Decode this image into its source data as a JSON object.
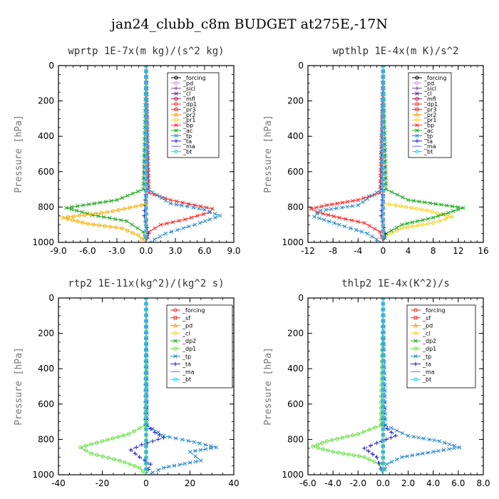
{
  "figure_title": "jan24_clubb_c8m  BUDGET at275E,-17N",
  "chart_data": [
    {
      "type": "line",
      "title": "wprtp  1E-7x(m kg)/(s^2 kg)",
      "ylabel": "Pressure [hPa]",
      "xlabel": "",
      "xlim": [
        -9,
        9
      ],
      "ylim": [
        1000,
        0
      ],
      "xticks": [
        "-9.0",
        "-6.0",
        "-3.0",
        "0.0",
        "3.0",
        "6.0",
        "9.0"
      ],
      "xtick_values": [
        -9,
        -6,
        -3,
        0,
        3,
        6,
        9
      ],
      "yticks": [
        "0",
        "200",
        "400",
        "600",
        "800",
        "1000"
      ],
      "ytick_values": [
        0,
        200,
        400,
        600,
        800,
        1000
      ],
      "series": [
        {
          "name": "_forcing",
          "color": "#000000",
          "marker": "o",
          "x": [
            0,
            0
          ],
          "y": [
            0,
            1000
          ]
        },
        {
          "name": "_pd",
          "color": "#c8a0e6",
          "marker": "o",
          "x": [
            0,
            0
          ],
          "y": [
            0,
            1000
          ]
        },
        {
          "name": "_sicl",
          "color": "#7b3fa0",
          "marker": "+",
          "x": [
            0,
            0
          ],
          "y": [
            0,
            1000
          ]
        },
        {
          "name": "_cl",
          "color": "#5a2a8a",
          "marker": "x",
          "x": [
            0,
            0
          ],
          "y": [
            0,
            1000
          ]
        },
        {
          "name": "_mfl",
          "color": "#a01a4a",
          "marker": "o",
          "x": [
            0,
            0
          ],
          "y": [
            0,
            1000
          ]
        },
        {
          "name": "_dp1",
          "color": "#e03030",
          "marker": "o",
          "x": [
            0,
            0
          ],
          "y": [
            0,
            1000
          ]
        },
        {
          "name": "_pr3",
          "color": "#e03030",
          "marker": "s",
          "x": [
            0,
            0
          ],
          "y": [
            0,
            1000
          ]
        },
        {
          "name": "_pr2",
          "color": "#f5a020",
          "marker": "^",
          "x": [
            0,
            0
          ],
          "y": [
            0,
            1000
          ]
        },
        {
          "name": "_pr1",
          "color": "#f5d020",
          "marker": "o",
          "x": [
            0,
            0
          ],
          "y": [
            0,
            1000
          ]
        },
        {
          "name": "_bp",
          "color": "#ff2a2a",
          "marker": "x",
          "x": [
            0,
            0.3,
            2.5,
            5.0,
            6.8,
            6.5,
            4.0,
            1.5,
            0.3,
            0
          ],
          "y": [
            0,
            720,
            760,
            790,
            810,
            830,
            870,
            900,
            940,
            1000
          ]
        },
        {
          "name": "_ac",
          "color": "#22aa22",
          "marker": "x",
          "x": [
            0,
            -0.3,
            -3.0,
            -8.2,
            -5.5,
            -2.0,
            -0.3,
            0
          ],
          "y": [
            0,
            700,
            760,
            805,
            845,
            880,
            940,
            1000
          ]
        },
        {
          "name": "_tp",
          "color": "#2a8ac8",
          "marker": "x",
          "x": [
            0,
            0.2,
            2.5,
            6.0,
            7.6,
            5.0,
            2.0,
            0.3
          ],
          "y": [
            0,
            700,
            780,
            815,
            850,
            900,
            950,
            1000
          ]
        },
        {
          "name": "_ta",
          "color": "#2222cc",
          "marker": "+",
          "x": [
            0,
            0,
            -0.2,
            0.2,
            0
          ],
          "y": [
            0,
            700,
            850,
            950,
            1000
          ]
        },
        {
          "name": "_ma",
          "color": "#8080ff",
          "marker": "-",
          "x": [
            0,
            0
          ],
          "y": [
            0,
            1000
          ]
        },
        {
          "name": "_bt",
          "color": "#22d0ff",
          "marker": "o",
          "x": [
            0,
            0
          ],
          "y": [
            0,
            1000
          ]
        },
        {
          "name": "_pr",
          "color": "#f5b000",
          "marker": "o",
          "x": [
            0,
            -0.5,
            -4.0,
            -8.6,
            -6.0,
            -2.5,
            -0.8,
            0
          ],
          "y": [
            780,
            790,
            830,
            860,
            895,
            920,
            960,
            1000
          ]
        }
      ]
    },
    {
      "type": "line",
      "title": "wpthlp  1E-4x(m K)/s^2",
      "ylabel": "Pressure [hPa]",
      "xlabel": "",
      "xlim": [
        -12,
        16
      ],
      "ylim": [
        1000,
        0
      ],
      "xticks": [
        "-12",
        "-8",
        "-4",
        "0",
        "4",
        "8",
        "12",
        "16"
      ],
      "xtick_values": [
        -12,
        -8,
        -4,
        0,
        4,
        8,
        12,
        16
      ],
      "yticks": [
        "0",
        "200",
        "400",
        "600",
        "800",
        "1000"
      ],
      "ytick_values": [
        0,
        200,
        400,
        600,
        800,
        1000
      ],
      "series": [
        {
          "name": "_forcing",
          "color": "#000000",
          "marker": "o",
          "x": [
            0,
            0
          ],
          "y": [
            0,
            1000
          ]
        },
        {
          "name": "_pd",
          "color": "#c8a0e6",
          "marker": "o",
          "x": [
            0,
            0
          ],
          "y": [
            0,
            1000
          ]
        },
        {
          "name": "_sicl",
          "color": "#7b3fa0",
          "marker": "+",
          "x": [
            0,
            0
          ],
          "y": [
            0,
            1000
          ]
        },
        {
          "name": "_cl",
          "color": "#5a2a8a",
          "marker": "x",
          "x": [
            0,
            0
          ],
          "y": [
            0,
            1000
          ]
        },
        {
          "name": "_mfl",
          "color": "#a01a4a",
          "marker": "o",
          "x": [
            0,
            0
          ],
          "y": [
            0,
            1000
          ]
        },
        {
          "name": "_dp1",
          "color": "#e03030",
          "marker": "o",
          "x": [
            0,
            0
          ],
          "y": [
            0,
            1000
          ]
        },
        {
          "name": "_pr3",
          "color": "#e03030",
          "marker": "s",
          "x": [
            0,
            0
          ],
          "y": [
            0,
            1000
          ]
        },
        {
          "name": "_pr2",
          "color": "#f5a020",
          "marker": "^",
          "x": [
            0,
            0
          ],
          "y": [
            0,
            1000
          ]
        },
        {
          "name": "_pr1",
          "color": "#f5d020",
          "marker": "o",
          "x": [
            0,
            2.0,
            7.0,
            11.0,
            8.0,
            3.0,
            0.5,
            0
          ],
          "y": [
            780,
            790,
            820,
            855,
            890,
            920,
            960,
            1000
          ]
        },
        {
          "name": "_bp",
          "color": "#ff2a2a",
          "marker": "x",
          "x": [
            0,
            -0.5,
            -4.0,
            -9.0,
            -11.5,
            -10.5,
            -7.0,
            -3.0,
            -0.5,
            0
          ],
          "y": [
            0,
            720,
            760,
            790,
            810,
            830,
            860,
            890,
            940,
            1000
          ]
        },
        {
          "name": "_ac",
          "color": "#22aa22",
          "marker": "x",
          "x": [
            0,
            0.5,
            4.0,
            12.8,
            8.0,
            3.0,
            0.5,
            0
          ],
          "y": [
            0,
            700,
            760,
            805,
            860,
            900,
            950,
            1000
          ]
        },
        {
          "name": "_tp",
          "color": "#2a8ac8",
          "marker": "x",
          "x": [
            0,
            -0.3,
            -4.0,
            -10.0,
            -11.0,
            -7.0,
            -2.5,
            -0.3
          ],
          "y": [
            0,
            700,
            790,
            820,
            855,
            900,
            950,
            1000
          ]
        },
        {
          "name": "_ta",
          "color": "#2222cc",
          "marker": "+",
          "x": [
            0,
            0,
            -0.3,
            0.3,
            0
          ],
          "y": [
            0,
            700,
            850,
            950,
            1000
          ]
        },
        {
          "name": "_ma",
          "color": "#8080ff",
          "marker": "-",
          "x": [
            0,
            0
          ],
          "y": [
            0,
            1000
          ]
        },
        {
          "name": "_bt",
          "color": "#22d0ff",
          "marker": "o",
          "x": [
            0,
            0
          ],
          "y": [
            0,
            1000
          ]
        }
      ]
    },
    {
      "type": "line",
      "title": "rtp2  1E-11x(kg^2)/(kg^2 s)",
      "ylabel": "Pressure [hPa]",
      "xlabel": "",
      "xlim": [
        -40,
        40
      ],
      "ylim": [
        1000,
        0
      ],
      "xticks": [
        "-40",
        "-20",
        "0",
        "20",
        "40"
      ],
      "xtick_values": [
        -40,
        -20,
        0,
        20,
        40
      ],
      "yticks": [
        "0",
        "200",
        "400",
        "600",
        "800",
        "1000"
      ],
      "ytick_values": [
        0,
        200,
        400,
        600,
        800,
        1000
      ],
      "series": [
        {
          "name": "_forcing",
          "color": "#e03030",
          "marker": "o",
          "x": [
            0,
            0
          ],
          "y": [
            0,
            1000
          ]
        },
        {
          "name": "_sf",
          "color": "#e03030",
          "marker": "s",
          "x": [
            0,
            0
          ],
          "y": [
            0,
            1000
          ]
        },
        {
          "name": "_pd",
          "color": "#f5a020",
          "marker": "^",
          "x": [
            0,
            0
          ],
          "y": [
            0,
            1000
          ]
        },
        {
          "name": "_cl",
          "color": "#f5d020",
          "marker": "o",
          "x": [
            0,
            0
          ],
          "y": [
            0,
            1000
          ]
        },
        {
          "name": "_dp2",
          "color": "#22aa22",
          "marker": "x",
          "x": [
            0,
            0
          ],
          "y": [
            0,
            1000
          ]
        },
        {
          "name": "_dp1",
          "color": "#66dd44",
          "marker": "o",
          "x": [
            0,
            -0.5,
            -8.0,
            -20.0,
            -30.0,
            -25.0,
            -12.0,
            -3.0,
            0
          ],
          "y": [
            0,
            720,
            770,
            810,
            845,
            880,
            920,
            960,
            1000
          ]
        },
        {
          "name": "_tp",
          "color": "#2a8ac8",
          "marker": "x",
          "x": [
            0,
            0.5,
            8.0,
            22.0,
            32.0,
            20.0,
            25.0,
            8.0,
            0.5
          ],
          "y": [
            0,
            720,
            780,
            815,
            845,
            870,
            920,
            960,
            1000
          ]
        },
        {
          "name": "_ta",
          "color": "#2222cc",
          "marker": "+",
          "x": [
            0,
            0,
            4.0,
            8.0,
            -2.0,
            -7.0,
            -3.0,
            2.0,
            0
          ],
          "y": [
            0,
            720,
            760,
            790,
            830,
            860,
            900,
            940,
            1000
          ]
        },
        {
          "name": "_ma",
          "color": "#8080ff",
          "marker": "-",
          "x": [
            0,
            0
          ],
          "y": [
            0,
            1000
          ]
        },
        {
          "name": "_bt",
          "color": "#22d0ff",
          "marker": "o",
          "x": [
            0,
            0
          ],
          "y": [
            0,
            1000
          ]
        }
      ]
    },
    {
      "type": "line",
      "title": "thlp2  1E-4x(K^2)/s",
      "ylabel": "Pressure [hPa]",
      "xlabel": "",
      "xlim": [
        -6,
        8
      ],
      "ylim": [
        1000,
        0
      ],
      "xticks": [
        "-6.0",
        "-4.0",
        "-2.0",
        "0.0",
        "2.0",
        "4.0",
        "6.0",
        "8.0"
      ],
      "xtick_values": [
        -6,
        -4,
        -2,
        0,
        2,
        4,
        6,
        8
      ],
      "yticks": [
        "0",
        "200",
        "400",
        "600",
        "800",
        "1000"
      ],
      "ytick_values": [
        0,
        200,
        400,
        600,
        800,
        1000
      ],
      "series": [
        {
          "name": "_forcing",
          "color": "#e03030",
          "marker": "o",
          "x": [
            0,
            0
          ],
          "y": [
            0,
            1000
          ]
        },
        {
          "name": "_sf",
          "color": "#e03030",
          "marker": "s",
          "x": [
            0,
            0
          ],
          "y": [
            0,
            1000
          ]
        },
        {
          "name": "_pd",
          "color": "#f5a020",
          "marker": "^",
          "x": [
            0,
            0
          ],
          "y": [
            0,
            1000
          ]
        },
        {
          "name": "_cl",
          "color": "#f5d020",
          "marker": "o",
          "x": [
            0,
            0
          ],
          "y": [
            0,
            1000
          ]
        },
        {
          "name": "_dp2",
          "color": "#22aa22",
          "marker": "x",
          "x": [
            0,
            0
          ],
          "y": [
            0,
            1000
          ]
        },
        {
          "name": "_dp1",
          "color": "#66dd44",
          "marker": "o",
          "x": [
            0,
            -0.2,
            -2.0,
            -4.5,
            -5.6,
            -4.0,
            -1.5,
            -0.3,
            0
          ],
          "y": [
            0,
            720,
            770,
            810,
            840,
            870,
            900,
            940,
            1000
          ]
        },
        {
          "name": "_tp",
          "color": "#2a8ac8",
          "marker": "x",
          "x": [
            0,
            0.2,
            2.0,
            4.5,
            6.1,
            4.0,
            1.5,
            0.3,
            0
          ],
          "y": [
            0,
            720,
            780,
            810,
            845,
            870,
            900,
            940,
            1000
          ]
        },
        {
          "name": "_ta",
          "color": "#2222cc",
          "marker": "+",
          "x": [
            0,
            0,
            1.0,
            -0.5,
            -1.5,
            -0.5,
            0
          ],
          "y": [
            0,
            720,
            780,
            820,
            850,
            900,
            1000
          ]
        },
        {
          "name": "_ma",
          "color": "#8080ff",
          "marker": "-",
          "x": [
            0,
            0
          ],
          "y": [
            0,
            1000
          ]
        },
        {
          "name": "_bt",
          "color": "#22d0ff",
          "marker": "o",
          "x": [
            0,
            0
          ],
          "y": [
            0,
            1000
          ]
        }
      ]
    }
  ]
}
